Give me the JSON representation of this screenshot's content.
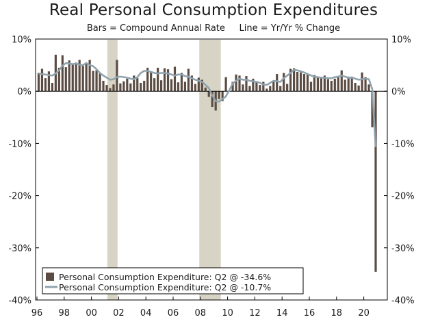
{
  "chart_data": {
    "type": "bar",
    "title": "Real Personal Consumption Expenditures",
    "subtitle": "Bars = Compound Annual Rate     Line = Yr/Yr % Change",
    "ylim": [
      -40,
      10
    ],
    "y_ticks": [
      10,
      0,
      -10,
      -20,
      -30,
      -40
    ],
    "y_tick_labels": [
      "10%",
      "0%",
      "-10%",
      "-20%",
      "-30%",
      "-40%"
    ],
    "x_tick_labels": [
      "96",
      "98",
      "00",
      "02",
      "04",
      "06",
      "08",
      "10",
      "12",
      "14",
      "16",
      "18",
      "20"
    ],
    "x_start_year": 1996,
    "recessions": [
      [
        2001.17,
        2001.92
      ],
      [
        2007.92,
        2009.5
      ]
    ],
    "bar_color": "#5b4c43",
    "line_color": "#8fa3ae",
    "recession_color": "#d8d4c5",
    "series": [
      {
        "name": "Personal Consumption Expenditure: Q2 @ -34.6%",
        "kind": "bar",
        "values": [
          3.5,
          4.3,
          2.5,
          3.8,
          1.6,
          7.0,
          4.5,
          6.9,
          4.6,
          5.9,
          5.2,
          5.5,
          6.0,
          4.9,
          5.5,
          6.0,
          3.9,
          4.0,
          3.5,
          2.0,
          1.2,
          0.6,
          1.3,
          6.0,
          1.5,
          1.9,
          2.4,
          1.5,
          3.0,
          2.5,
          1.6,
          2.0,
          4.5,
          3.8,
          2.5,
          4.5,
          2.1,
          4.4,
          4.2,
          2.3,
          4.7,
          1.7,
          3.5,
          1.8,
          4.3,
          3.0,
          1.4,
          2.6,
          2.2,
          0.7,
          -1.1,
          -3.0,
          -3.7,
          -1.5,
          -1.9,
          2.7,
          0.1,
          1.8,
          3.2,
          3.0,
          1.3,
          2.9,
          1.0,
          2.4,
          1.9,
          1.2,
          1.8,
          0.5,
          1.0,
          2.0,
          3.3,
          1.0,
          3.5,
          1.4,
          4.3,
          4.4,
          3.7,
          3.6,
          3.3,
          3.2,
          1.8,
          3.1,
          2.8,
          2.6,
          3.0,
          2.3,
          2.0,
          2.4,
          2.8,
          4.0,
          2.2,
          2.8,
          2.8,
          1.6,
          1.1,
          3.6,
          2.7,
          1.3,
          -6.9,
          -34.6
        ]
      },
      {
        "name": "Personal Consumption Expenditure: Q2 @ -10.7%",
        "kind": "line",
        "values": [
          3.4,
          3.3,
          3.2,
          3.1,
          3.0,
          3.4,
          4.0,
          4.9,
          5.4,
          5.3,
          5.2,
          5.3,
          5.1,
          5.0,
          5.4,
          5.0,
          4.8,
          4.2,
          3.5,
          3.0,
          2.6,
          2.2,
          2.3,
          2.7,
          2.8,
          2.7,
          2.6,
          2.4,
          2.3,
          2.7,
          3.5,
          3.9,
          3.9,
          3.7,
          3.5,
          3.4,
          3.5,
          3.5,
          3.4,
          3.2,
          3.0,
          3.2,
          3.2,
          2.9,
          2.8,
          2.5,
          2.2,
          2.0,
          1.8,
          1.2,
          0.6,
          -0.8,
          -1.9,
          -2.0,
          -1.5,
          -1.0,
          0.2,
          1.5,
          2.0,
          2.4,
          2.2,
          2.2,
          2.0,
          1.9,
          1.8,
          1.6,
          1.3,
          1.2,
          1.6,
          2.0,
          1.9,
          1.8,
          2.5,
          3.0,
          3.5,
          4.1,
          4.0,
          3.8,
          3.6,
          3.3,
          3.0,
          2.8,
          2.7,
          2.6,
          2.6,
          2.5,
          2.5,
          2.7,
          2.8,
          3.0,
          2.8,
          2.6,
          2.6,
          2.4,
          2.2,
          2.3,
          2.4,
          2.3,
          0.4,
          -10.7
        ]
      }
    ]
  }
}
